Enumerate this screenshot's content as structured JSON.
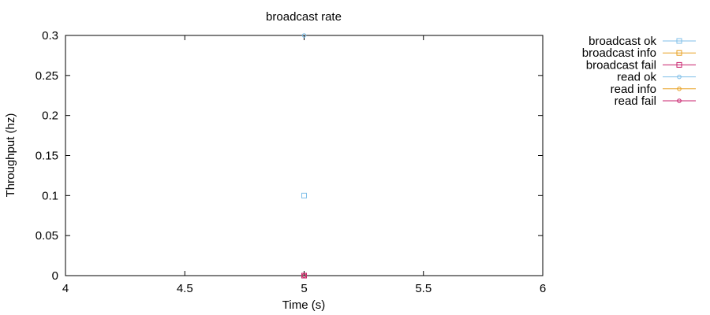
{
  "chart_data": {
    "type": "scatter",
    "title": "broadcast rate",
    "xlabel": "Time (s)",
    "ylabel": "Throughput (hz)",
    "xlim": [
      4,
      6
    ],
    "ylim": [
      0,
      0.3
    ],
    "xticks": [
      "4",
      "4.5",
      "5",
      "5.5",
      "6"
    ],
    "yticks": [
      "0",
      "0.05",
      "0.1",
      "0.15",
      "0.2",
      "0.25",
      "0.3"
    ],
    "xtick_values": [
      4,
      4.5,
      5,
      5.5,
      6
    ],
    "ytick_values": [
      0,
      0.05,
      0.1,
      0.15,
      0.2,
      0.25,
      0.3
    ],
    "grid": false,
    "legend_position": "outside-top-right",
    "series": [
      {
        "name": "broadcast ok",
        "color": "#7fbfe8",
        "marker": "square",
        "points": [
          [
            5,
            0.1
          ],
          [
            5,
            0
          ]
        ]
      },
      {
        "name": "broadcast info",
        "color": "#e8a020",
        "marker": "square",
        "points": [
          [
            5,
            0
          ]
        ]
      },
      {
        "name": "broadcast fail",
        "color": "#c8206c",
        "marker": "square",
        "points": [
          [
            5,
            0
          ]
        ]
      },
      {
        "name": "read ok",
        "color": "#7fbfe8",
        "marker": "circle",
        "points": [
          [
            5,
            0.3
          ],
          [
            5,
            0
          ]
        ]
      },
      {
        "name": "read info",
        "color": "#e8a020",
        "marker": "circle",
        "points": [
          [
            5,
            0
          ]
        ]
      },
      {
        "name": "read fail",
        "color": "#c8206c",
        "marker": "circle",
        "points": [
          [
            5,
            0
          ]
        ]
      }
    ]
  }
}
